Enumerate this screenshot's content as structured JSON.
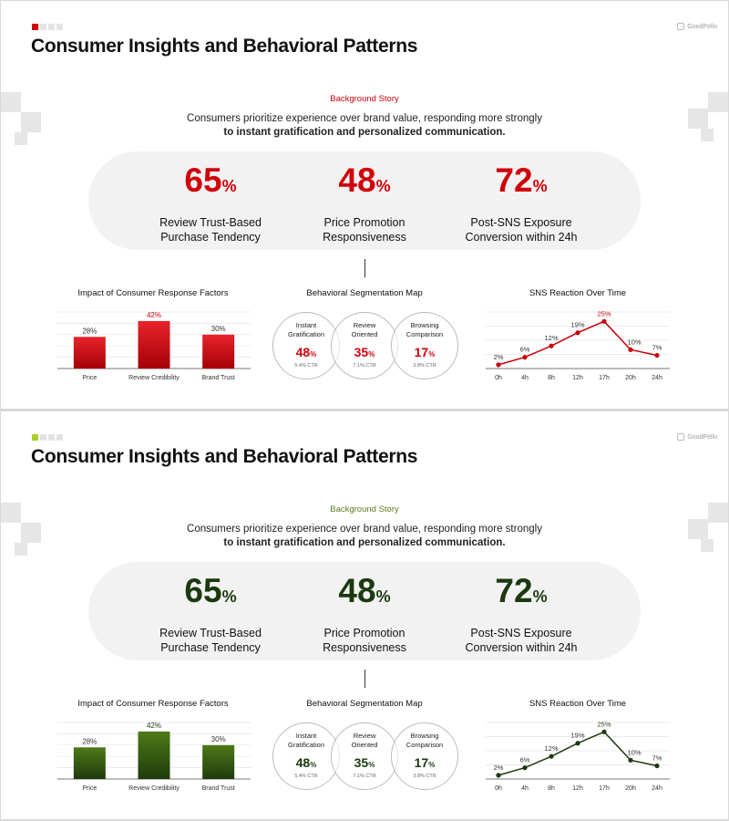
{
  "slides": [
    {
      "title": "Consumer Insights and Behavioral Patterns",
      "logo": "GoodPello",
      "background_label": "Background Story",
      "intro_line1": "Consumers prioritize experience over brand value, responding more strongly",
      "intro_line2": "to instant gratification and personalized communication.",
      "stats": [
        {
          "value": "65",
          "unit": "%",
          "label1": "Review Trust-Based",
          "label2": "Purchase Tendency"
        },
        {
          "value": "48",
          "unit": "%",
          "label1": "Price Promotion",
          "label2": "Responsiveness"
        },
        {
          "value": "72",
          "unit": "%",
          "label1": "Post-SNS Exposure",
          "label2": "Conversion within 24h"
        }
      ],
      "bar_title": "Impact of Consumer Response Factors",
      "seg_title": "Behavioral Segmentation Map",
      "line_title": "SNS Reaction Over Time",
      "segments": [
        {
          "name1": "Instant",
          "name2": "Gratification",
          "value": "48",
          "unit": "%",
          "ctr": "5.4% CTR"
        },
        {
          "name1": "Review",
          "name2": "Oriented",
          "value": "35",
          "unit": "%",
          "ctr": "7.1% CTR"
        },
        {
          "name1": "Browsing",
          "name2": "Comparison",
          "value": "17",
          "unit": "%",
          "ctr": "3.8% CTR"
        }
      ]
    },
    {
      "title": "Consumer Insights and Behavioral Patterns",
      "logo": "GoodPello",
      "background_label": "Background Story",
      "intro_line1": "Consumers prioritize experience over brand value, responding more strongly",
      "intro_line2": "to instant gratification and personalized communication.",
      "stats": [
        {
          "value": "65",
          "unit": "%",
          "label1": "Review Trust-Based",
          "label2": "Purchase Tendency"
        },
        {
          "value": "48",
          "unit": "%",
          "label1": "Price Promotion",
          "label2": "Responsiveness"
        },
        {
          "value": "72",
          "unit": "%",
          "label1": "Post-SNS Exposure",
          "label2": "Conversion within 24h"
        }
      ],
      "bar_title": "Impact of Consumer Response Factors",
      "seg_title": "Behavioral Segmentation Map",
      "line_title": "SNS Reaction Over Time",
      "segments": [
        {
          "name1": "Instant",
          "name2": "Gratification",
          "value": "48",
          "unit": "%",
          "ctr": "5.4% CTR"
        },
        {
          "name1": "Review",
          "name2": "Oriented",
          "value": "35",
          "unit": "%",
          "ctr": "7.1% CTR"
        },
        {
          "name1": "Browsing",
          "name2": "Comparison",
          "value": "17",
          "unit": "%",
          "ctr": "3.8% CTR"
        }
      ]
    }
  ],
  "themes": [
    {
      "accent": "#d0000a",
      "bar_top": "#e8242c",
      "bar_bottom": "#a50007",
      "stat_color": "#d0000a",
      "seg_color": "#d0000a",
      "line_color": "#c8000a",
      "label_color": "#c8000a"
    },
    {
      "accent": "#a6d12a",
      "bar_top": "#4d7a18",
      "bar_bottom": "#1f3a0c",
      "stat_color": "#1b3a0f",
      "seg_color": "#1b3a0f",
      "line_color": "#1b3a0f",
      "label_color": "#5a7d1c"
    }
  ],
  "chart_data": [
    {
      "type": "bar",
      "title": "Impact of Consumer Response Factors",
      "categories": [
        "Price",
        "Review Credibility",
        "Brand Trust"
      ],
      "values": [
        28,
        42,
        30
      ],
      "value_labels": [
        "28%",
        "42%",
        "30%"
      ],
      "ylim": [
        0,
        50
      ]
    },
    {
      "type": "line",
      "title": "SNS Reaction Over Time",
      "x": [
        "0h",
        "4h",
        "8h",
        "12h",
        "17h",
        "20h",
        "24h"
      ],
      "values": [
        2,
        6,
        12,
        19,
        25,
        10,
        7
      ],
      "value_labels": [
        "2%",
        "6%",
        "12%",
        "19%",
        "25%",
        "10%",
        "7%"
      ],
      "ylim": [
        0,
        30
      ]
    }
  ]
}
